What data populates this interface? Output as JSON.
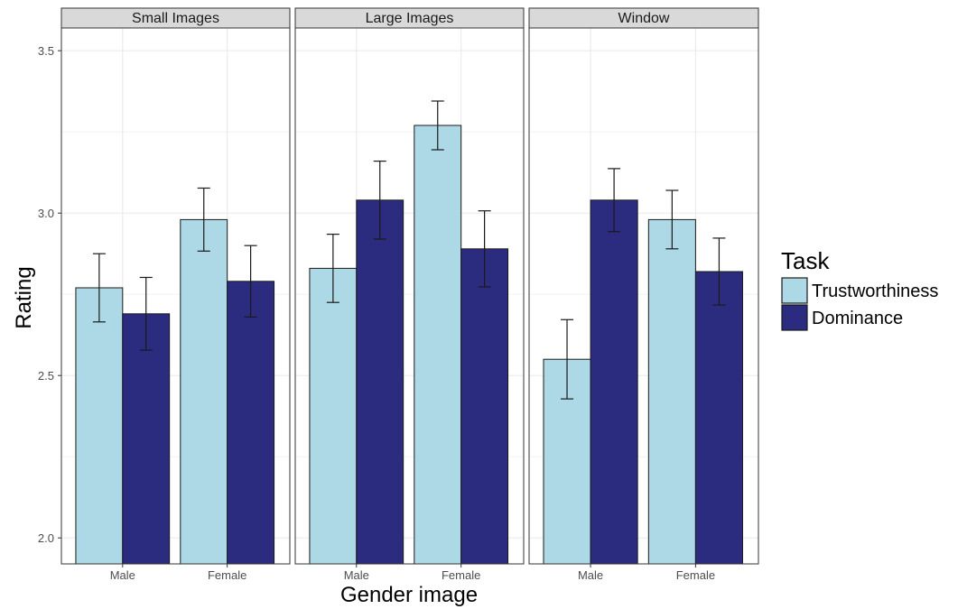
{
  "chart_data": {
    "type": "bar",
    "facets": [
      "Small Images",
      "Large Images",
      "Window"
    ],
    "categories": [
      "Male",
      "Female"
    ],
    "series": [
      {
        "name": "Trustworthiness",
        "color": "#ADD8E6",
        "values": [
          [
            2.77,
            2.98
          ],
          [
            2.83,
            3.27
          ],
          [
            2.55,
            2.98
          ]
        ],
        "errors": [
          [
            0.105,
            0.097
          ],
          [
            0.105,
            0.075
          ],
          [
            0.122,
            0.09
          ]
        ]
      },
      {
        "name": "Dominance",
        "color": "#2B2B80",
        "values": [
          [
            2.69,
            2.79
          ],
          [
            3.04,
            2.89
          ],
          [
            3.04,
            2.82
          ]
        ],
        "errors": [
          [
            0.112,
            0.11
          ],
          [
            0.12,
            0.117
          ],
          [
            0.097,
            0.103
          ]
        ]
      }
    ],
    "xlabel": "Gender image",
    "ylabel": "Rating",
    "ylim": [
      1.92,
      3.57
    ],
    "yticks": [
      "2.0",
      "2.5",
      "3.0",
      "3.5"
    ],
    "legend_title": "Task",
    "legend_position": "right",
    "grid": true
  }
}
